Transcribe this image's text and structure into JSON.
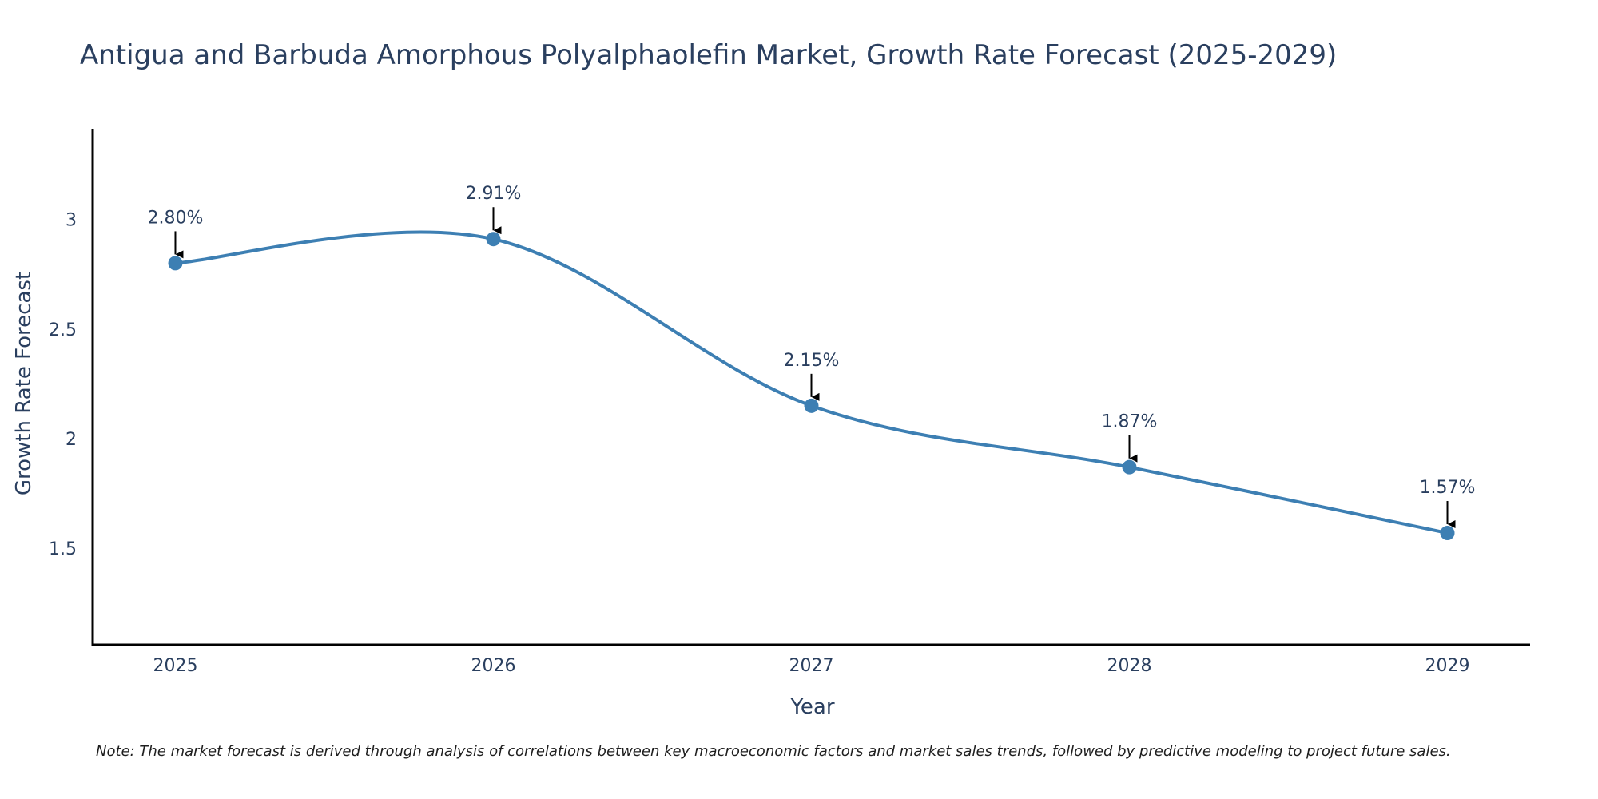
{
  "chart_data": {
    "type": "line",
    "title": "Antigua and Barbuda Amorphous Polyalphaolefin Market, Growth Rate Forecast (2025-2029)",
    "xlabel": "Year",
    "ylabel": "Growth Rate Forecast",
    "x": [
      2025,
      2026,
      2027,
      2028,
      2029
    ],
    "xtick_labels": [
      "2025",
      "2026",
      "2027",
      "2028",
      "2029"
    ],
    "series": [
      {
        "name": "Growth Rate Forecast",
        "values": [
          2.8,
          2.91,
          2.15,
          1.87,
          1.57
        ],
        "labels": [
          "2.80%",
          "2.91%",
          "2.15%",
          "1.87%",
          "1.57%"
        ]
      }
    ],
    "yticks": [
      1.5,
      2,
      2.5,
      3
    ],
    "ytick_labels": [
      "1.5",
      "2",
      "2.5",
      "3"
    ],
    "ylim": [
      1.06,
      3.41
    ],
    "xlim": [
      2024.74,
      2029.26
    ],
    "grid": false,
    "colors": {
      "line": "#3d7fb3",
      "marker": "#3d7fb3",
      "axis": "#000000",
      "text": "#2a3f5f",
      "arrow": "#000000"
    },
    "note": "Note: The market forecast is derived through analysis of correlations between key macroeconomic factors and market sales trends, followed by predictive modeling to project future sales."
  }
}
